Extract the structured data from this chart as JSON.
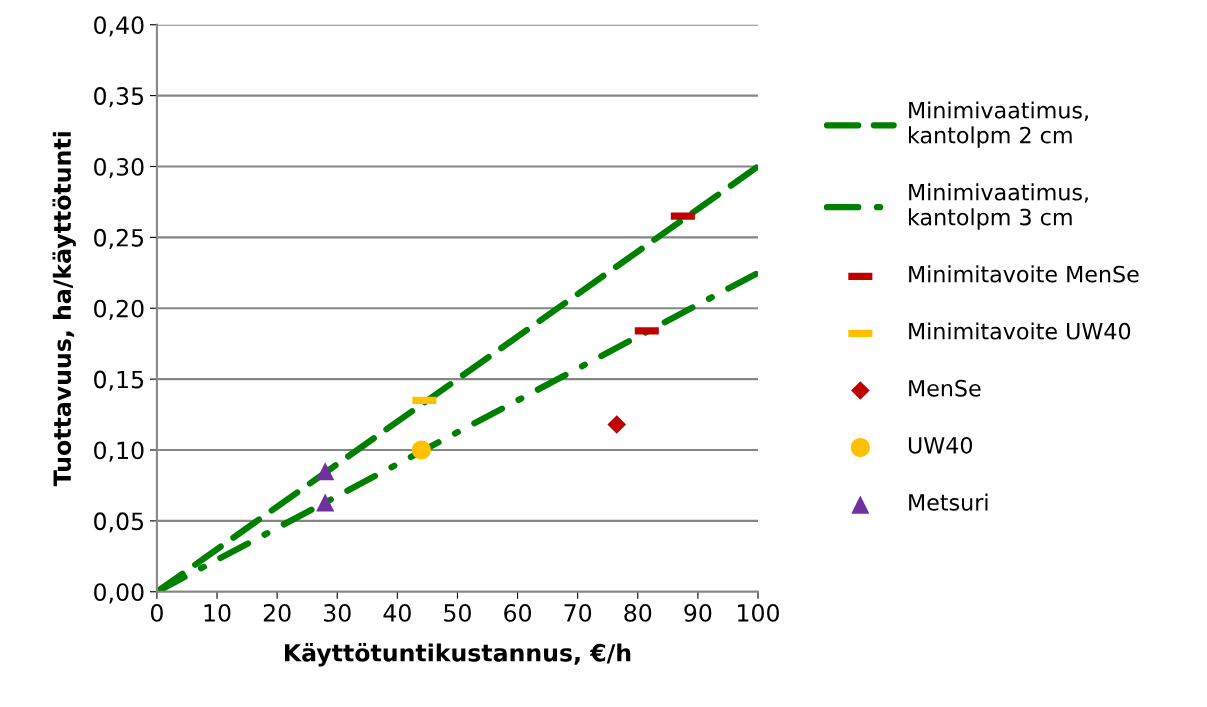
{
  "chart_data": {
    "type": "scatter",
    "xlabel": "Käyttötuntikustannus, €/h",
    "ylabel": "Tuottavuus, ha/käyttötunti",
    "xlim": [
      0,
      100
    ],
    "xticks": [
      0,
      10,
      20,
      30,
      40,
      50,
      60,
      70,
      80,
      90,
      100
    ],
    "ylim": [
      0,
      0.4
    ],
    "yticks": [
      {
        "value": 0,
        "label": "0,00"
      },
      {
        "value": 0.05,
        "label": "0,05"
      },
      {
        "value": 0.1,
        "label": "0,10"
      },
      {
        "value": 0.15,
        "label": "0,15"
      },
      {
        "value": 0.2,
        "label": "0,20"
      },
      {
        "value": 0.25,
        "label": "0,25"
      },
      {
        "value": 0.3,
        "label": "0,30"
      },
      {
        "value": 0.35,
        "label": "0,35"
      },
      {
        "value": 0.4,
        "label": "0,40"
      }
    ],
    "grid": "y",
    "legend": "right",
    "series": [
      {
        "name": "Minimivaatimus,\nkantolpm 2 cm",
        "type": "line",
        "line_style": "dashed",
        "marker": "none",
        "color": "#008000",
        "x": [
          0,
          100
        ],
        "values": [
          0,
          0.3
        ]
      },
      {
        "name": "Minimivaatimus,\nkantolpm 3 cm",
        "type": "line",
        "line_style": "dashdot",
        "marker": "none",
        "color": "#008000",
        "x": [
          0,
          100
        ],
        "values": [
          0,
          0.225
        ]
      },
      {
        "name": "Minimitavoite MenSe",
        "marker": "square",
        "color": "#c00000",
        "x": [
          87.5,
          81.5
        ],
        "values": [
          0.265,
          0.184
        ]
      },
      {
        "name": "Minimitavoite UW40",
        "marker": "square",
        "color": "#ffc000",
        "x": [
          44.5
        ],
        "values": [
          0.135
        ]
      },
      {
        "name": "MenSe",
        "marker": "diamond",
        "color": "#c00000",
        "x": [
          76.5
        ],
        "values": [
          0.118
        ]
      },
      {
        "name": "UW40",
        "marker": "circle",
        "color": "#ffc000",
        "x": [
          44
        ],
        "values": [
          0.1
        ]
      },
      {
        "name": "Metsuri",
        "marker": "triangle",
        "color": "#7030a0",
        "x": [
          28,
          28
        ],
        "values": [
          0.085,
          0.063
        ]
      }
    ]
  }
}
